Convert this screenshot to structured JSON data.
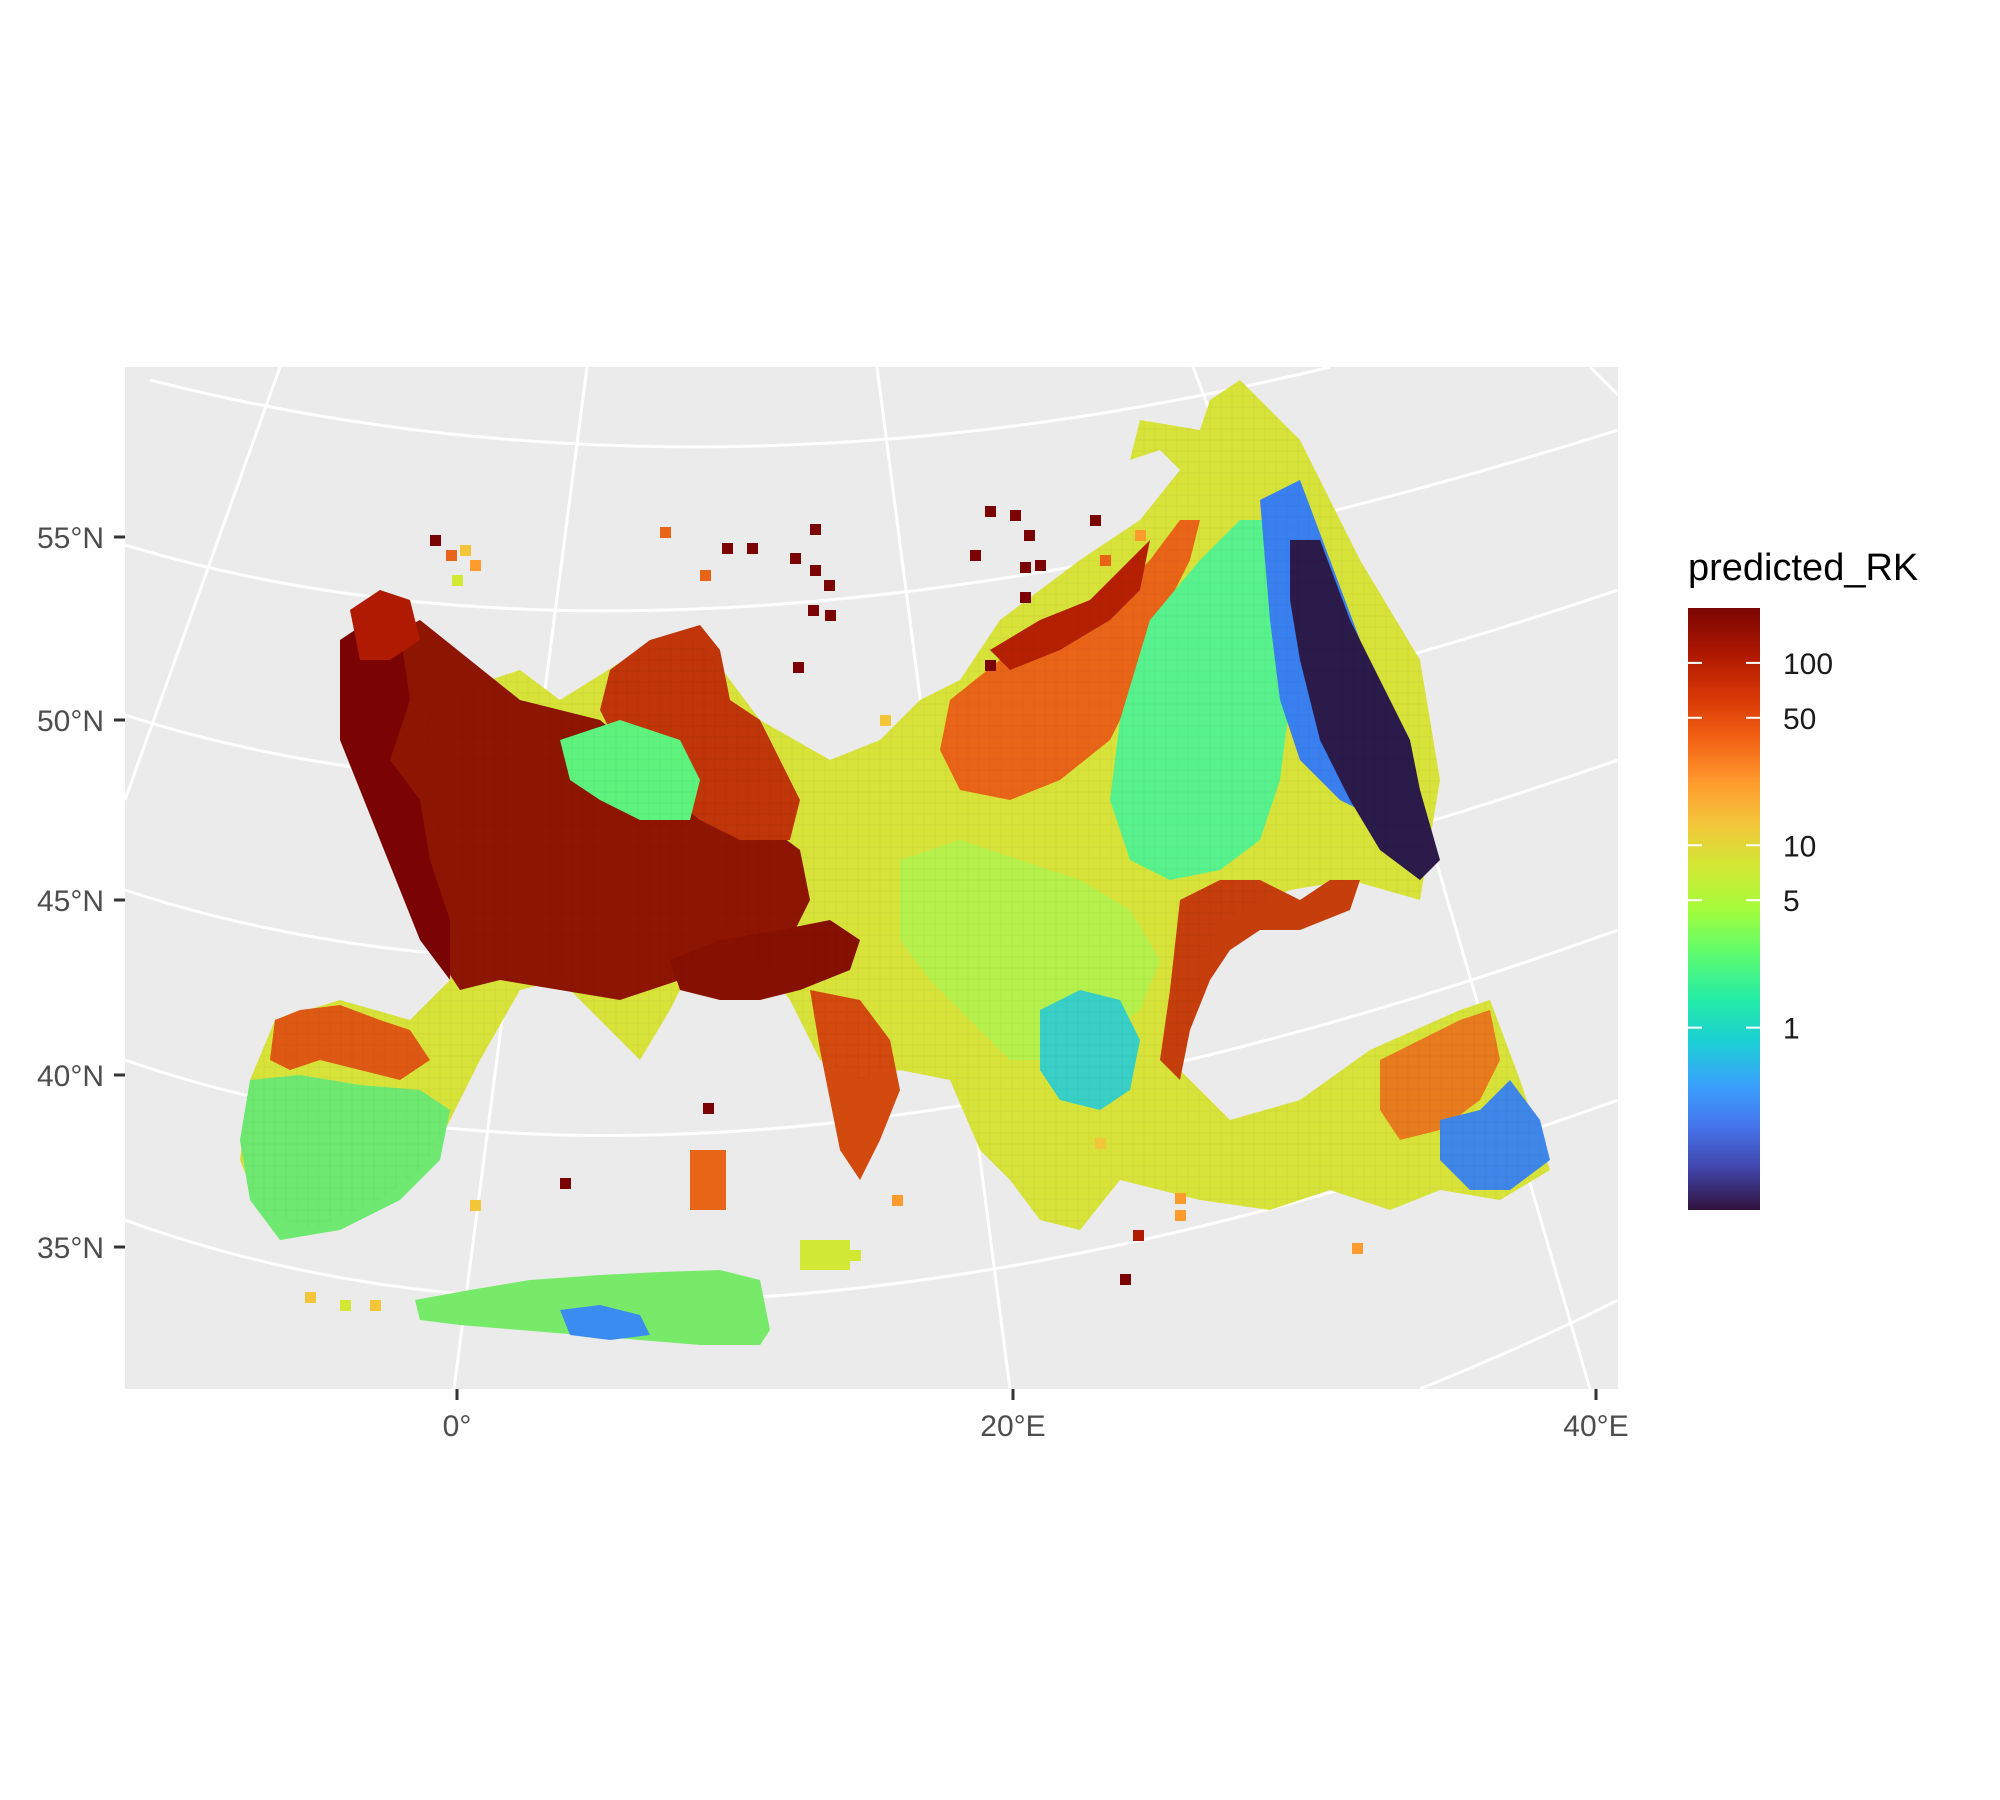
{
  "chart_data": {
    "type": "heatmap",
    "map_type": "raster map, conic projection",
    "region": "Europe and Mediterranean",
    "x_axis": {
      "ticks": [
        "0°",
        "20°E",
        "40°E"
      ],
      "lon_values": [
        0,
        20,
        40
      ]
    },
    "y_axis": {
      "ticks": [
        "55°N",
        "50°N",
        "45°N",
        "40°N",
        "35°N"
      ],
      "lat_values": [
        55,
        50,
        45,
        40,
        35
      ]
    },
    "legend": {
      "title": "predicted_RK",
      "scale": "log",
      "breaks": [
        "100",
        "50",
        "10",
        "5",
        "1"
      ],
      "break_values": [
        100,
        50,
        10,
        5,
        1
      ],
      "range": [
        0.1,
        200
      ],
      "palette": "turbo",
      "placement": "right"
    },
    "regions": [
      {
        "name": "western France / Biscay coast",
        "level": "very high (>100)"
      },
      {
        "name": "northern Italy / Po valley",
        "level": "very high (~100)"
      },
      {
        "name": "Germany / Central Europe north",
        "level": "high (~50)"
      },
      {
        "name": "Poland / Baltic south coast",
        "level": "high (20–50)"
      },
      {
        "name": "Alps interior",
        "level": "low (~1–3)"
      },
      {
        "name": "Balkans / Hungary",
        "level": "moderate (2–10)"
      },
      {
        "name": "Iberian interior",
        "level": "low–moderate (1–3)"
      },
      {
        "name": "Black Sea north coast",
        "level": "high (~30)"
      },
      {
        "name": "eastern Ukraine / Russia",
        "level": "very low (<0.2)"
      },
      {
        "name": "Anatolia east",
        "level": "low (0.3–1)"
      },
      {
        "name": "North Africa coast",
        "level": "low (0.5–3)"
      }
    ]
  },
  "colors": {
    "panel_background": "#ebebeb",
    "grid_lines": "#ffffff",
    "tick_text": "#4d4d4d"
  }
}
